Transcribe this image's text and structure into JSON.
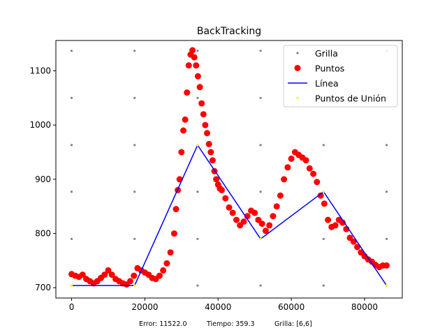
{
  "chart_data": {
    "type": "scatter",
    "title": "BackTracking",
    "xlabel": "",
    "ylabel": "",
    "xlim": [
      -4300,
      90300
    ],
    "ylim": [
      681,
      1156
    ],
    "x_ticks": [
      0,
      20000,
      40000,
      60000,
      80000
    ],
    "x_tick_labels": [
      "0",
      "20000",
      "40000",
      "60000",
      "80000"
    ],
    "y_ticks": [
      700,
      800,
      900,
      1000,
      1100
    ],
    "y_tick_labels": [
      "700",
      "800",
      "900",
      "1000",
      "1100"
    ],
    "grid": false,
    "legend_position": "top-right",
    "footer": {
      "error": "Error: 11522.0",
      "time": "Tiempo: 359.3",
      "grid": "Grilla: [6,6]"
    },
    "series": [
      {
        "name": "Grilla",
        "kind": "scatter",
        "color": "#808080",
        "marker": "small-dot",
        "points": [
          [
            0,
            704
          ],
          [
            0,
            790
          ],
          [
            0,
            877
          ],
          [
            0,
            963
          ],
          [
            0,
            1050
          ],
          [
            0,
            1137
          ],
          [
            17200,
            704
          ],
          [
            17200,
            790
          ],
          [
            17200,
            877
          ],
          [
            17200,
            963
          ],
          [
            17200,
            1050
          ],
          [
            17200,
            1137
          ],
          [
            34400,
            704
          ],
          [
            34400,
            790
          ],
          [
            34400,
            877
          ],
          [
            34400,
            963
          ],
          [
            34400,
            1050
          ],
          [
            34400,
            1137
          ],
          [
            51600,
            704
          ],
          [
            51600,
            790
          ],
          [
            51600,
            877
          ],
          [
            51600,
            963
          ],
          [
            51600,
            1050
          ],
          [
            51600,
            1137
          ],
          [
            68800,
            704
          ],
          [
            68800,
            790
          ],
          [
            68800,
            877
          ],
          [
            68800,
            963
          ],
          [
            68800,
            1050
          ],
          [
            68800,
            1137
          ],
          [
            86000,
            704
          ],
          [
            86000,
            790
          ],
          [
            86000,
            877
          ],
          [
            86000,
            963
          ],
          [
            86000,
            1050
          ],
          [
            86000,
            1137
          ]
        ]
      },
      {
        "name": "Puntos",
        "kind": "scatter",
        "color": "#ff0000",
        "marker": "dot",
        "points": [
          [
            0,
            725
          ],
          [
            1000,
            722
          ],
          [
            2000,
            720
          ],
          [
            3000,
            724
          ],
          [
            4000,
            716
          ],
          [
            5000,
            712
          ],
          [
            6000,
            708
          ],
          [
            7000,
            712
          ],
          [
            8000,
            718
          ],
          [
            9000,
            724
          ],
          [
            10000,
            732
          ],
          [
            11000,
            724
          ],
          [
            12000,
            716
          ],
          [
            13000,
            712
          ],
          [
            14000,
            708
          ],
          [
            15000,
            706
          ],
          [
            16000,
            712
          ],
          [
            17000,
            722
          ],
          [
            18000,
            736
          ],
          [
            19000,
            732
          ],
          [
            20000,
            728
          ],
          [
            21000,
            724
          ],
          [
            22000,
            718
          ],
          [
            23000,
            716
          ],
          [
            24000,
            722
          ],
          [
            25000,
            732
          ],
          [
            26000,
            745
          ],
          [
            27000,
            765
          ],
          [
            28000,
            800
          ],
          [
            28500,
            845
          ],
          [
            29000,
            880
          ],
          [
            29500,
            900
          ],
          [
            30000,
            950
          ],
          [
            30500,
            990
          ],
          [
            31000,
            1010
          ],
          [
            31500,
            1060
          ],
          [
            32000,
            1110
          ],
          [
            32500,
            1130
          ],
          [
            33000,
            1138
          ],
          [
            33500,
            1125
          ],
          [
            34000,
            1110
          ],
          [
            34500,
            1090
          ],
          [
            35000,
            1070
          ],
          [
            35500,
            1040
          ],
          [
            36000,
            1020
          ],
          [
            36500,
            1000
          ],
          [
            37000,
            985
          ],
          [
            37500,
            965
          ],
          [
            38000,
            950
          ],
          [
            38500,
            935
          ],
          [
            39000,
            915
          ],
          [
            39500,
            900
          ],
          [
            40000,
            890
          ],
          [
            40500,
            883
          ],
          [
            41000,
            880
          ],
          [
            42000,
            865
          ],
          [
            43000,
            848
          ],
          [
            44000,
            838
          ],
          [
            45000,
            825
          ],
          [
            46000,
            815
          ],
          [
            47000,
            822
          ],
          [
            48000,
            832
          ],
          [
            49000,
            842
          ],
          [
            50000,
            838
          ],
          [
            51000,
            825
          ],
          [
            52000,
            818
          ],
          [
            53000,
            805
          ],
          [
            54000,
            815
          ],
          [
            55000,
            832
          ],
          [
            56000,
            850
          ],
          [
            57000,
            870
          ],
          [
            58000,
            900
          ],
          [
            59000,
            922
          ],
          [
            60000,
            938
          ],
          [
            61000,
            950
          ],
          [
            62000,
            945
          ],
          [
            63000,
            940
          ],
          [
            64000,
            935
          ],
          [
            65000,
            920
          ],
          [
            66000,
            910
          ],
          [
            67000,
            895
          ],
          [
            68000,
            870
          ],
          [
            69000,
            855
          ],
          [
            70000,
            825
          ],
          [
            71000,
            812
          ],
          [
            72000,
            815
          ],
          [
            73000,
            825
          ],
          [
            74000,
            820
          ],
          [
            75000,
            808
          ],
          [
            76000,
            792
          ],
          [
            77000,
            785
          ],
          [
            78000,
            775
          ],
          [
            79000,
            765
          ],
          [
            80000,
            758
          ],
          [
            81000,
            752
          ],
          [
            82000,
            748
          ],
          [
            83000,
            742
          ],
          [
            84000,
            738
          ],
          [
            85000,
            741
          ],
          [
            86000,
            741
          ]
        ]
      },
      {
        "name": "Línea",
        "kind": "line",
        "color": "#0000ff",
        "points": [
          [
            0,
            704
          ],
          [
            17200,
            704
          ],
          [
            34400,
            963
          ],
          [
            51600,
            790
          ],
          [
            68800,
            877
          ],
          [
            86000,
            704
          ]
        ]
      },
      {
        "name": "Puntos de Unión",
        "kind": "scatter",
        "color": "#ffff00",
        "marker": "small-dot",
        "points": [
          [
            0,
            704
          ],
          [
            17200,
            704
          ],
          [
            34400,
            963
          ],
          [
            51600,
            790
          ],
          [
            68800,
            877
          ],
          [
            86000,
            704
          ]
        ]
      }
    ]
  }
}
